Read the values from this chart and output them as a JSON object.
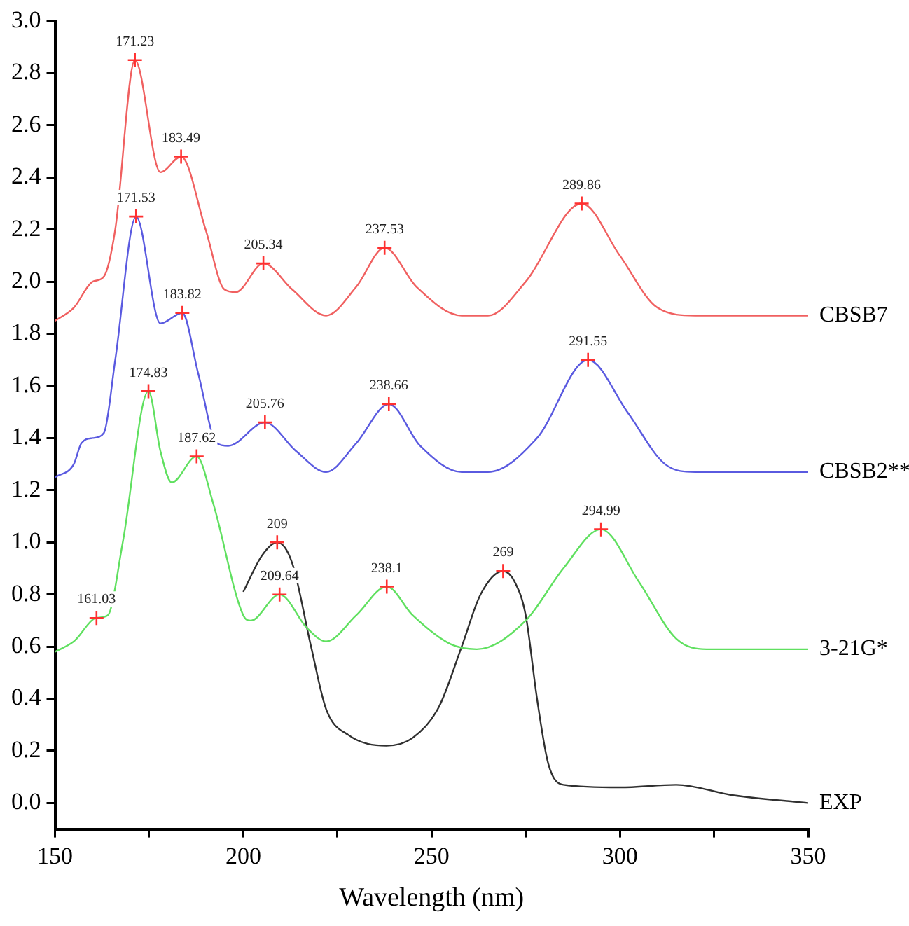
{
  "chart_data": {
    "type": "line",
    "xlabel": "Wavelength (nm)",
    "xlim": [
      150,
      350
    ],
    "ylim": [
      -0.1,
      3.0
    ],
    "xticks": [
      150,
      {
        "value": 175,
        "label": null
      },
      200,
      {
        "value": 225,
        "label": null
      },
      250,
      {
        "value": 275,
        "label": null
      },
      300,
      {
        "value": 325,
        "label": null
      },
      350
    ],
    "yticks": [
      {
        "value": 0,
        "label": "0.0"
      },
      0.2,
      0.4,
      0.6,
      0.8,
      {
        "value": 1,
        "label": "1.0"
      },
      1.2,
      1.4,
      1.6,
      1.8,
      {
        "value": 2,
        "label": "2.0"
      },
      2.2,
      2.4,
      2.6,
      2.8,
      {
        "value": 3,
        "label": "3.0"
      }
    ],
    "grid": false,
    "legend": false,
    "marker": "none",
    "line_style": "solid",
    "series": [
      {
        "name": "CBSB7",
        "color": "#f06060",
        "x": [
          150,
          155,
          160,
          163,
          166,
          171.23,
          178,
          183.49,
          190,
          195,
          198,
          205.34,
          213,
          222,
          230,
          237.53,
          246,
          258,
          265,
          275,
          289.86,
          300,
          310,
          320,
          350
        ],
        "values": [
          1.85,
          1.9,
          2.0,
          2.02,
          2.2,
          2.85,
          2.42,
          2.48,
          2.2,
          1.97,
          1.96,
          2.07,
          1.97,
          1.87,
          1.98,
          2.13,
          1.98,
          1.87,
          1.87,
          2.0,
          2.3,
          2.1,
          1.9,
          1.87,
          1.87
        ]
      },
      {
        "name": "CBSB2**",
        "color": "#5a5ae0",
        "x": [
          150,
          155,
          157,
          160,
          163,
          166,
          171.53,
          178,
          183.82,
          188,
          193,
          196,
          205.76,
          214,
          222,
          230,
          238.66,
          247,
          258,
          265,
          278,
          291.55,
          302,
          312,
          320,
          350
        ],
        "values": [
          1.25,
          1.3,
          1.38,
          1.4,
          1.42,
          1.7,
          2.25,
          1.84,
          1.88,
          1.65,
          1.38,
          1.37,
          1.46,
          1.35,
          1.27,
          1.38,
          1.53,
          1.37,
          1.27,
          1.27,
          1.4,
          1.7,
          1.5,
          1.3,
          1.27,
          1.27
        ]
      },
      {
        "name": "3-21G*",
        "color": "#60e060",
        "x": [
          150,
          155,
          161.03,
          164,
          168,
          174.83,
          178,
          181,
          187.62,
          192,
          200,
          202,
          209.64,
          217,
          222,
          230,
          238.1,
          245,
          255,
          262,
          275,
          285,
          294.99,
          305,
          315,
          323,
          350
        ],
        "values": [
          0.58,
          0.62,
          0.71,
          0.72,
          1.0,
          1.58,
          1.35,
          1.23,
          1.33,
          1.15,
          0.72,
          0.7,
          0.8,
          0.67,
          0.62,
          0.72,
          0.83,
          0.72,
          0.61,
          0.59,
          0.7,
          0.9,
          1.05,
          0.85,
          0.63,
          0.59,
          0.59
        ]
      },
      {
        "name": "EXP",
        "color": "#303030",
        "x": [
          200,
          205,
          209,
          213,
          218,
          222,
          228,
          238,
          245,
          252,
          258,
          263,
          269,
          272,
          275,
          278,
          281,
          285,
          300,
          315,
          330,
          350
        ],
        "values": [
          0.81,
          0.95,
          1.0,
          0.92,
          0.6,
          0.36,
          0.26,
          0.22,
          0.25,
          0.37,
          0.6,
          0.8,
          0.89,
          0.85,
          0.72,
          0.4,
          0.15,
          0.07,
          0.06,
          0.07,
          0.03,
          0.0
        ]
      }
    ],
    "annotations": [
      {
        "text": "171.23",
        "x": 171.23,
        "y": 2.85
      },
      {
        "text": "183.49",
        "x": 183.49,
        "y": 2.48
      },
      {
        "text": "205.34",
        "x": 205.34,
        "y": 2.07
      },
      {
        "text": "237.53",
        "x": 237.53,
        "y": 2.13
      },
      {
        "text": "289.86",
        "x": 289.86,
        "y": 2.3
      },
      {
        "text": "171.53",
        "x": 171.53,
        "y": 2.25
      },
      {
        "text": "183.82",
        "x": 183.82,
        "y": 1.88
      },
      {
        "text": "205.76",
        "x": 205.76,
        "y": 1.46
      },
      {
        "text": "238.66",
        "x": 238.66,
        "y": 1.53
      },
      {
        "text": "291.55",
        "x": 291.55,
        "y": 1.7
      },
      {
        "text": "161.03",
        "x": 161.03,
        "y": 0.71
      },
      {
        "text": "174.83",
        "x": 174.83,
        "y": 1.58
      },
      {
        "text": "187.62",
        "x": 187.62,
        "y": 1.33
      },
      {
        "text": "209.64",
        "x": 209.64,
        "y": 0.8
      },
      {
        "text": "238.1",
        "x": 238.1,
        "y": 0.83
      },
      {
        "text": "294.99",
        "x": 294.99,
        "y": 1.05
      },
      {
        "text": "209",
        "x": 209,
        "y": 1.0
      },
      {
        "text": "269",
        "x": 269,
        "y": 0.89
      }
    ]
  }
}
